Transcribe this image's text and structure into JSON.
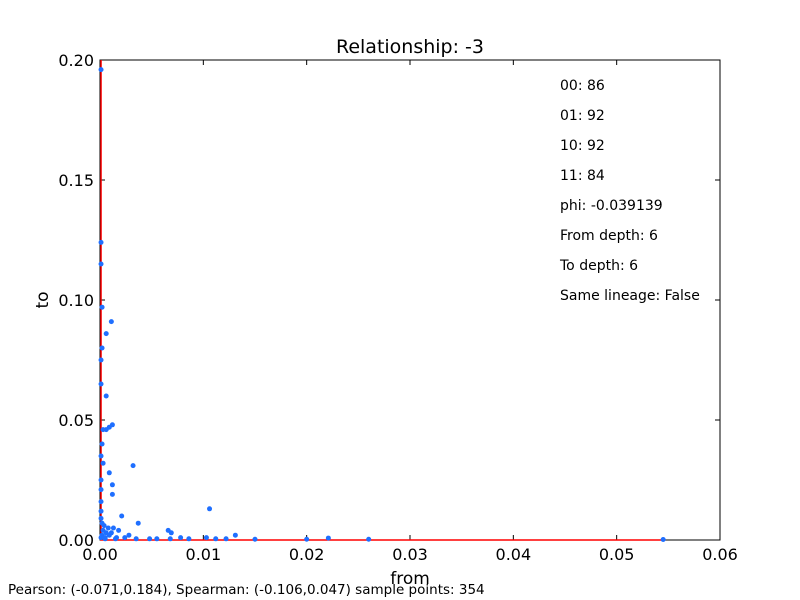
{
  "chart_data": {
    "type": "scatter",
    "title": "Relationship: -3",
    "xlabel": "from",
    "ylabel": "to",
    "xlim": [
      0,
      0.06
    ],
    "ylim": [
      0,
      0.2
    ],
    "x_ticks": [
      "0.00",
      "0.01",
      "0.02",
      "0.03",
      "0.04",
      "0.05",
      "0.06"
    ],
    "y_ticks": [
      "0.00",
      "0.05",
      "0.10",
      "0.15",
      "0.20"
    ],
    "grid": false,
    "point_color": "#1f6fff",
    "line_color": "#ff0000",
    "points": [
      [
        0.0001,
        0.196
      ],
      [
        0.0001,
        0.124
      ],
      [
        0.0001,
        0.115
      ],
      [
        0.0002,
        0.097
      ],
      [
        0.0006,
        0.086
      ],
      [
        0.0011,
        0.091
      ],
      [
        0.0002,
        0.08
      ],
      [
        0.0001,
        0.075
      ],
      [
        0.0001,
        0.065
      ],
      [
        0.0006,
        0.06
      ],
      [
        0.0012,
        0.048
      ],
      [
        0.0009,
        0.047
      ],
      [
        0.0006,
        0.046
      ],
      [
        0.0003,
        0.046
      ],
      [
        0.0002,
        0.04
      ],
      [
        0.0001,
        0.035
      ],
      [
        0.0003,
        0.032
      ],
      [
        0.0032,
        0.031
      ],
      [
        0.0009,
        0.028
      ],
      [
        0.0001,
        0.025
      ],
      [
        0.0012,
        0.023
      ],
      [
        0.0001,
        0.021
      ],
      [
        0.0012,
        0.019
      ],
      [
        0.0001,
        0.016
      ],
      [
        0.0001,
        0.012
      ],
      [
        0.0106,
        0.013
      ],
      [
        0.0021,
        0.01
      ],
      [
        0.0001,
        0.009
      ],
      [
        0.0002,
        0.007
      ],
      [
        0.0037,
        0.007
      ],
      [
        0.0004,
        0.006
      ],
      [
        0.0008,
        0.005
      ],
      [
        0.0013,
        0.005
      ],
      [
        0.0003,
        0.004
      ],
      [
        0.0018,
        0.004
      ],
      [
        0.0066,
        0.004
      ],
      [
        0.0006,
        0.003
      ],
      [
        0.0011,
        0.003
      ],
      [
        0.0069,
        0.003
      ],
      [
        0.0002,
        0.002
      ],
      [
        0.0009,
        0.002
      ],
      [
        0.0028,
        0.002
      ],
      [
        0.0131,
        0.002
      ],
      [
        0.0001,
        0.001
      ],
      [
        0.0005,
        0.001
      ],
      [
        0.0016,
        0.001
      ],
      [
        0.0024,
        0.001
      ],
      [
        0.0078,
        0.001
      ],
      [
        0.0103,
        0.001
      ],
      [
        0.0005,
        0.0005
      ],
      [
        0.0015,
        0.0005
      ],
      [
        0.0035,
        0.0005
      ],
      [
        0.0048,
        0.0005
      ],
      [
        0.0055,
        0.0005
      ],
      [
        0.0068,
        0.0005
      ],
      [
        0.0086,
        0.0005
      ],
      [
        0.0112,
        0.0005
      ],
      [
        0.0122,
        0.0005
      ],
      [
        0.015,
        0.0003
      ],
      [
        0.02,
        0.0003
      ],
      [
        0.0221,
        0.0008
      ],
      [
        0.026,
        0.0003
      ],
      [
        0.0545,
        0.0002
      ]
    ],
    "line": [
      [
        0.0001,
        0.2
      ],
      [
        0.0001,
        0.0
      ],
      [
        0.0545,
        0.0
      ]
    ]
  },
  "annotations": [
    "00: 86",
    "01: 92",
    "10: 92",
    "11: 84",
    "phi: -0.039139",
    "From depth: 6",
    "To depth: 6",
    "Same lineage: False"
  ],
  "footer": "Pearson: (-0.071,0.184), Spearman: (-0.106,0.047) sample points: 354"
}
